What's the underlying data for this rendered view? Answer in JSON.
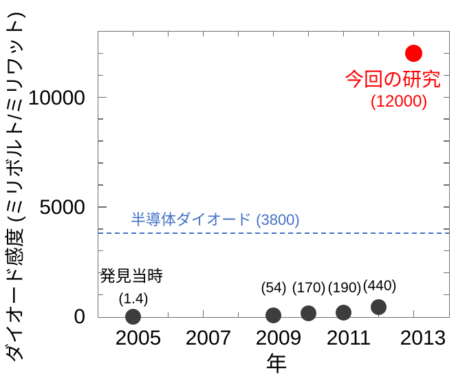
{
  "figure": {
    "background": "#ffffff",
    "axis_color": "#6e6e6e",
    "text_color": "#000000"
  },
  "chart_data": {
    "type": "scatter",
    "title": "",
    "xlabel": "年",
    "ylabel": "ダイオード感度 (ミリボルト/ミリワット)",
    "xlim": [
      2004,
      2014
    ],
    "ylim": [
      0,
      13000
    ],
    "grid": false,
    "x_ticks": [
      2005,
      2006,
      2007,
      2008,
      2009,
      2010,
      2011,
      2012,
      2013
    ],
    "x_labeled_ticks": [
      "2005",
      "2007",
      "2009",
      "2011",
      "2013"
    ],
    "x_labeled_tick_values": [
      2005,
      2007,
      2009,
      2011,
      2013
    ],
    "y_tick_step": 1000,
    "y_major_tick_values": [
      5000,
      10000
    ],
    "y_labeled_ticks": [
      {
        "value": 0,
        "label": "0"
      },
      {
        "value": 5000,
        "label": "5000"
      },
      {
        "value": 10000,
        "label": "10000"
      }
    ],
    "series": [
      {
        "color": "#3d3d3d",
        "marker_size": 23,
        "points": [
          {
            "x": 2005,
            "y": 1.4,
            "label": "(1.4)"
          },
          {
            "x": 2009,
            "y": 54,
            "label": "(54)"
          },
          {
            "x": 2010,
            "y": 170,
            "label": "(170)"
          },
          {
            "x": 2011,
            "y": 190,
            "label": "(190)"
          },
          {
            "x": 2012,
            "y": 440,
            "label": "(440)"
          }
        ]
      },
      {
        "color": "#ff0000",
        "marker_size": 25,
        "points": [
          {
            "x": 2013,
            "y": 12000,
            "label": "(12000)"
          }
        ]
      }
    ],
    "reference_line": {
      "value": 3800,
      "label": "半導体ダイオード",
      "value_label": "(3800)",
      "color": "#4472c4",
      "style": "dashed"
    },
    "annotations": {
      "discovery_label": "発見当時",
      "this_work_label": "今回の研究"
    }
  }
}
